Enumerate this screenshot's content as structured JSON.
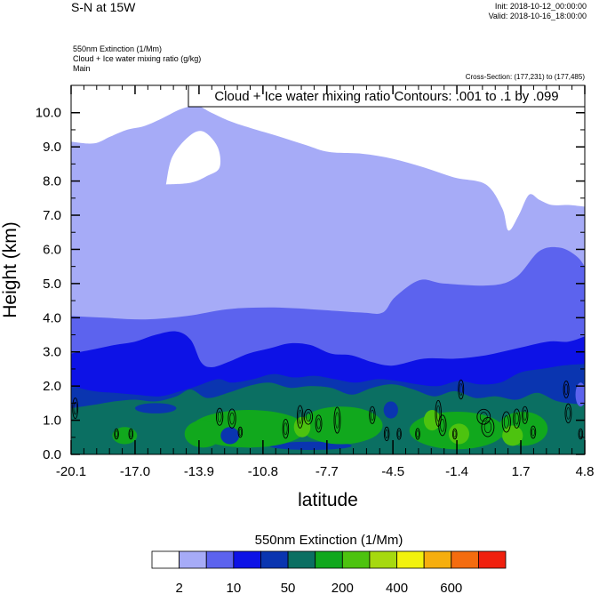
{
  "header": {
    "title": "S-N at 15W",
    "init": "Init: 2018-10-12_00:00:00",
    "valid": "Valid: 2018-10-16_18:00:00",
    "field_line_1": "550nm Extinction   (1/Mm)",
    "field_line_2": "Cloud + Ice water mixing ratio   (g/kg)",
    "field_line_3": "Main",
    "cross_section": "Cross-Section: (177,231) to (177,485)",
    "contour_info": "Cloud + Ice water mixing ratio Contours: .001 to .1 by .099"
  },
  "chart_data": {
    "type": "heatmap",
    "title": "S-N at 15W",
    "xlabel": "latitude",
    "ylabel": "Height (km)",
    "xlim": [
      -20.1,
      4.8
    ],
    "ylim": [
      0.0,
      10.8
    ],
    "x_ticks": [
      "-20.1",
      "-17.0",
      "-13.9",
      "-10.8",
      "-7.7",
      "-4.5",
      "-1.4",
      "1.7",
      "4.8"
    ],
    "y_ticks": [
      "0.0",
      "1.0",
      "2.0",
      "3.0",
      "4.0",
      "5.0",
      "6.0",
      "7.0",
      "8.0",
      "9.0",
      "10.0"
    ],
    "colorbar": {
      "title": "550nm Extinction  (1/Mm)",
      "labels": [
        "2",
        "10",
        "50",
        "200",
        "400",
        "600"
      ],
      "colors": [
        "#ffffff",
        "#a6abf7",
        "#5c63ee",
        "#0d12e6",
        "#0a35b0",
        "#0b6f62",
        "#11a81d",
        "#4dc30f",
        "#a6d90f",
        "#f2f20d",
        "#f6ae0e",
        "#f46c0f",
        "#f0200e"
      ]
    },
    "extinction_layers": [
      {
        "level": "2-10",
        "color": "#a6abf7",
        "top_km": [
          [
            -20.1,
            9.15
          ],
          [
            -19.0,
            9.1
          ],
          [
            -18.2,
            9.3
          ],
          [
            -17.4,
            9.5
          ],
          [
            -16.6,
            9.6
          ],
          [
            -15.8,
            9.8
          ],
          [
            -14.8,
            10.1
          ],
          [
            -14.0,
            10.2
          ],
          [
            -13.3,
            10.0
          ],
          [
            -12.4,
            9.75
          ],
          [
            -11.4,
            9.55
          ],
          [
            -10.0,
            9.3
          ],
          [
            -8.7,
            9.05
          ],
          [
            -7.6,
            8.85
          ],
          [
            -6.0,
            8.8
          ],
          [
            -4.5,
            8.65
          ],
          [
            -3.0,
            8.4
          ],
          [
            -1.5,
            8.1
          ],
          [
            0.0,
            7.9
          ],
          [
            0.8,
            7.2
          ],
          [
            1.1,
            6.55
          ],
          [
            1.6,
            7.0
          ],
          [
            2.1,
            7.6
          ],
          [
            2.6,
            7.45
          ],
          [
            3.2,
            7.3
          ],
          [
            4.0,
            7.3
          ],
          [
            4.8,
            7.25
          ]
        ],
        "clear_pocket_km": [
          [
            -15.5,
            7.9
          ],
          [
            -15.2,
            8.7
          ],
          [
            -14.4,
            9.3
          ],
          [
            -13.7,
            9.45
          ],
          [
            -13.0,
            9.0
          ],
          [
            -12.9,
            8.4
          ],
          [
            -13.5,
            8.15
          ],
          [
            -14.3,
            7.95
          ],
          [
            -15.5,
            7.9
          ]
        ]
      },
      {
        "level": "10-50",
        "color": "#5c63ee",
        "top_km": [
          [
            -20.1,
            4.05
          ],
          [
            -18.5,
            4.0
          ],
          [
            -16.5,
            3.95
          ],
          [
            -14.5,
            4.05
          ],
          [
            -12.5,
            4.25
          ],
          [
            -10.5,
            4.3
          ],
          [
            -8.5,
            4.25
          ],
          [
            -6.0,
            4.15
          ],
          [
            -5.0,
            4.15
          ],
          [
            -4.4,
            4.6
          ],
          [
            -3.2,
            5.1
          ],
          [
            -2.0,
            5.0
          ],
          [
            0.3,
            4.95
          ],
          [
            1.5,
            5.2
          ],
          [
            2.6,
            5.95
          ],
          [
            3.6,
            6.05
          ],
          [
            4.4,
            5.8
          ],
          [
            4.8,
            5.5
          ]
        ]
      },
      {
        "level": "50-200",
        "color": "#0d12e6",
        "top_km": [
          [
            -20.1,
            2.95
          ],
          [
            -19.2,
            3.05
          ],
          [
            -18.0,
            3.2
          ],
          [
            -17.0,
            3.3
          ],
          [
            -16.0,
            3.5
          ],
          [
            -15.0,
            3.6
          ],
          [
            -14.3,
            3.35
          ],
          [
            -13.8,
            2.7
          ],
          [
            -13.3,
            2.55
          ],
          [
            -12.5,
            2.7
          ],
          [
            -11.5,
            2.95
          ],
          [
            -10.5,
            3.1
          ],
          [
            -9.5,
            3.25
          ],
          [
            -8.5,
            3.2
          ],
          [
            -7.5,
            2.95
          ],
          [
            -6.5,
            2.9
          ],
          [
            -5.5,
            2.7
          ],
          [
            -4.5,
            2.6
          ],
          [
            -3.0,
            2.8
          ],
          [
            -1.5,
            2.8
          ],
          [
            0.0,
            2.9
          ],
          [
            1.5,
            3.1
          ],
          [
            3.0,
            3.3
          ],
          [
            4.0,
            3.3
          ],
          [
            4.8,
            3.45
          ]
        ]
      },
      {
        "level": "200-400",
        "color": "#0a35b0",
        "top_km": [
          [
            -20.1,
            2.0
          ],
          [
            -19.0,
            1.85
          ],
          [
            -18.0,
            1.8
          ],
          [
            -17.0,
            1.75
          ],
          [
            -15.8,
            1.7
          ],
          [
            -14.8,
            1.85
          ],
          [
            -14.0,
            2.0
          ],
          [
            -13.0,
            2.2
          ],
          [
            -12.3,
            2.1
          ],
          [
            -11.3,
            2.2
          ],
          [
            -10.3,
            2.35
          ],
          [
            -9.3,
            2.25
          ],
          [
            -8.3,
            2.3
          ],
          [
            -7.3,
            2.2
          ],
          [
            -6.3,
            2.1
          ],
          [
            -5.3,
            2.2
          ],
          [
            -4.3,
            2.15
          ],
          [
            -3.3,
            2.05
          ],
          [
            -2.3,
            2.0
          ],
          [
            -1.3,
            2.15
          ],
          [
            -0.3,
            2.05
          ],
          [
            0.7,
            2.1
          ],
          [
            1.7,
            2.4
          ],
          [
            2.7,
            2.5
          ],
          [
            3.7,
            2.6
          ],
          [
            4.8,
            2.65
          ]
        ]
      },
      {
        "level": "400-600",
        "color": "#0b6f62",
        "top_km": [
          [
            -20.1,
            1.35
          ],
          [
            -19.0,
            1.45
          ],
          [
            -18.0,
            1.55
          ],
          [
            -17.0,
            1.6
          ],
          [
            -16.0,
            1.55
          ],
          [
            -15.0,
            1.7
          ],
          [
            -14.3,
            1.9
          ],
          [
            -13.5,
            1.65
          ],
          [
            -12.5,
            1.8
          ],
          [
            -11.5,
            2.0
          ],
          [
            -10.5,
            2.1
          ],
          [
            -9.5,
            1.95
          ],
          [
            -8.5,
            2.0
          ],
          [
            -7.5,
            1.95
          ],
          [
            -6.5,
            1.75
          ],
          [
            -5.5,
            1.95
          ],
          [
            -4.5,
            2.05
          ],
          [
            -3.5,
            1.9
          ],
          [
            -2.5,
            1.7
          ],
          [
            -1.5,
            1.85
          ],
          [
            -0.5,
            1.65
          ],
          [
            0.5,
            1.7
          ],
          [
            1.5,
            1.6
          ],
          [
            2.5,
            1.8
          ],
          [
            3.5,
            1.55
          ],
          [
            4.8,
            1.45
          ]
        ]
      }
    ],
    "extinction_patches": [
      {
        "level": "200-400",
        "color": "#0a35b0",
        "cx": 4.35,
        "cy": 1.75,
        "rx": 0.45,
        "ry": 0.25
      },
      {
        "level": "10-50",
        "color": "#5c63ee",
        "cx": 4.6,
        "cy": 1.75,
        "rx": 0.25,
        "ry": 0.35
      },
      {
        "level": "200-400",
        "color": "#0a35b0",
        "cx": -16.0,
        "cy": 1.35,
        "rx": 1.0,
        "ry": 0.15
      },
      {
        "level": "200-400",
        "color": "#0a35b0",
        "cx": -8.5,
        "cy": 0.25,
        "rx": 2.0,
        "ry": 0.12
      },
      {
        "level": "600+",
        "color": "#11a81d",
        "cx": -11.5,
        "cy": 0.75,
        "rx": 2.8,
        "ry": 0.55
      },
      {
        "level": "600+",
        "color": "#11a81d",
        "cx": -7.0,
        "cy": 0.85,
        "rx": 2.0,
        "ry": 0.55
      },
      {
        "level": "600+",
        "color": "#11a81d",
        "cx": -1.4,
        "cy": 0.7,
        "rx": 2.3,
        "ry": 0.55
      },
      {
        "level": "600+",
        "color": "#11a81d",
        "cx": 1.8,
        "cy": 0.75,
        "rx": 1.2,
        "ry": 0.5
      },
      {
        "level": "600+",
        "color": "#4dc30f",
        "cx": -8.9,
        "cy": 0.8,
        "rx": 0.4,
        "ry": 0.3
      },
      {
        "level": "600+",
        "color": "#4dc30f",
        "cx": -1.3,
        "cy": 0.6,
        "rx": 0.5,
        "ry": 0.3
      },
      {
        "level": "600+",
        "color": "#4dc30f",
        "cx": 1.3,
        "cy": 0.55,
        "rx": 0.5,
        "ry": 0.3
      },
      {
        "level": "600+",
        "color": "#4dc30f",
        "cx": -2.6,
        "cy": 1.0,
        "rx": 0.4,
        "ry": 0.3
      },
      {
        "level": "600+",
        "color": "#11a81d",
        "cx": -13.7,
        "cy": 0.6,
        "rx": 0.9,
        "ry": 0.4
      },
      {
        "level": "600+",
        "color": "#11a81d",
        "cx": -17.5,
        "cy": 0.55,
        "rx": 0.6,
        "ry": 0.25
      },
      {
        "level": "200-400",
        "color": "#0a35b0",
        "cx": -12.4,
        "cy": 0.55,
        "rx": 0.45,
        "ry": 0.25
      },
      {
        "level": "200-400",
        "color": "#0a35b0",
        "cx": -4.6,
        "cy": 1.3,
        "rx": 0.35,
        "ry": 0.25
      }
    ],
    "mixing_ratio_contours": [
      {
        "cx": -19.9,
        "cy": 1.35,
        "rx": 0.13,
        "ry": 0.3
      },
      {
        "cx": -17.9,
        "cy": 0.6,
        "rx": 0.1,
        "ry": 0.15
      },
      {
        "cx": -17.2,
        "cy": 0.6,
        "rx": 0.1,
        "ry": 0.15
      },
      {
        "cx": -12.9,
        "cy": 1.1,
        "rx": 0.16,
        "ry": 0.25
      },
      {
        "cx": -12.3,
        "cy": 1.05,
        "rx": 0.18,
        "ry": 0.28
      },
      {
        "cx": -11.9,
        "cy": 0.65,
        "rx": 0.1,
        "ry": 0.15
      },
      {
        "cx": -9.7,
        "cy": 0.75,
        "rx": 0.14,
        "ry": 0.28
      },
      {
        "cx": -9.0,
        "cy": 1.1,
        "rx": 0.14,
        "ry": 0.33
      },
      {
        "cx": -8.6,
        "cy": 1.1,
        "rx": 0.2,
        "ry": 0.22
      },
      {
        "cx": -8.1,
        "cy": 0.9,
        "rx": 0.15,
        "ry": 0.25
      },
      {
        "cx": -7.2,
        "cy": 1.0,
        "rx": 0.15,
        "ry": 0.38
      },
      {
        "cx": -5.5,
        "cy": 1.15,
        "rx": 0.14,
        "ry": 0.25
      },
      {
        "cx": -4.8,
        "cy": 0.6,
        "rx": 0.12,
        "ry": 0.2
      },
      {
        "cx": -4.2,
        "cy": 0.6,
        "rx": 0.1,
        "ry": 0.16
      },
      {
        "cx": -3.3,
        "cy": 0.6,
        "rx": 0.1,
        "ry": 0.16
      },
      {
        "cx": -2.3,
        "cy": 1.2,
        "rx": 0.14,
        "ry": 0.38
      },
      {
        "cx": -2.1,
        "cy": 0.85,
        "rx": 0.18,
        "ry": 0.3
      },
      {
        "cx": -1.5,
        "cy": 0.6,
        "rx": 0.1,
        "ry": 0.15
      },
      {
        "cx": -1.2,
        "cy": 1.9,
        "rx": 0.13,
        "ry": 0.28
      },
      {
        "cx": -0.1,
        "cy": 1.1,
        "rx": 0.32,
        "ry": 0.22
      },
      {
        "cx": 0.1,
        "cy": 0.8,
        "rx": 0.3,
        "ry": 0.28
      },
      {
        "cx": 1.0,
        "cy": 0.95,
        "rx": 0.2,
        "ry": 0.3
      },
      {
        "cx": 1.5,
        "cy": 1.05,
        "rx": 0.16,
        "ry": 0.28
      },
      {
        "cx": 1.9,
        "cy": 1.15,
        "rx": 0.14,
        "ry": 0.25
      },
      {
        "cx": 2.3,
        "cy": 0.65,
        "rx": 0.12,
        "ry": 0.18
      },
      {
        "cx": 3.9,
        "cy": 1.9,
        "rx": 0.13,
        "ry": 0.25
      },
      {
        "cx": 4.0,
        "cy": 1.2,
        "rx": 0.15,
        "ry": 0.28
      },
      {
        "cx": 4.6,
        "cy": 0.6,
        "rx": 0.1,
        "ry": 0.15
      }
    ]
  }
}
